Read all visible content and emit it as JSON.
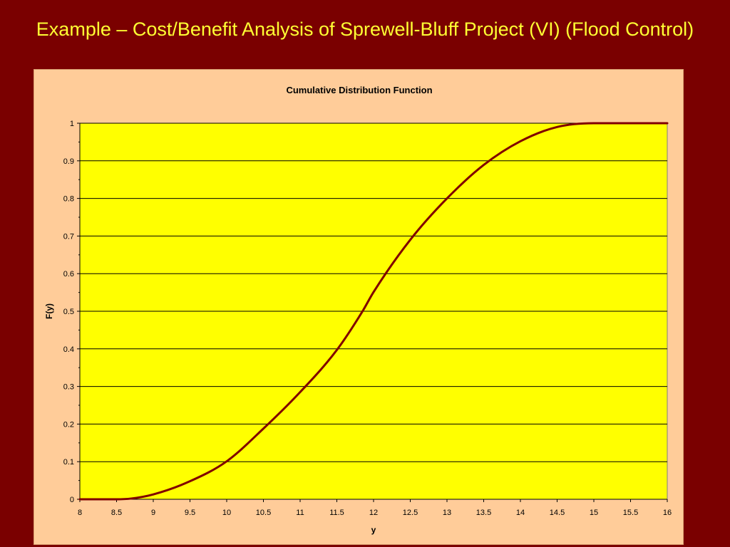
{
  "slide": {
    "title": "Example – Cost/Benefit Analysis of Sprewell-Bluff Project (VI) (Flood Control)"
  },
  "colors": {
    "background": "#7a0000",
    "title_text": "#ffff33",
    "chart_area": "#ffcc99",
    "plot_area": "#ffff00",
    "curve": "#800000",
    "gridline": "#000000"
  },
  "chart_data": {
    "type": "line",
    "title": "Cumulative Distribution Function",
    "xlabel": "y",
    "ylabel": "F(y)",
    "xlim": [
      8,
      16
    ],
    "ylim": [
      0,
      1
    ],
    "x_ticks": [
      "8",
      "8.5",
      "9",
      "9.5",
      "10",
      "10.5",
      "11",
      "11.5",
      "12",
      "12.5",
      "13",
      "13.5",
      "14",
      "14.5",
      "15",
      "15.5",
      "16"
    ],
    "y_ticks": [
      "0",
      "0.1",
      "0.2",
      "0.3",
      "0.4",
      "0.5",
      "0.6",
      "0.7",
      "0.8",
      "0.9",
      "1"
    ],
    "grid": "horizontal major gridlines",
    "legend": "none",
    "series": [
      {
        "x": [
          8,
          8.5,
          8.7,
          9,
          9.5,
          10,
          10.5,
          11,
          11.5,
          11.85,
          12,
          12.5,
          13,
          13.5,
          14,
          14.5,
          15,
          15.5,
          16
        ],
        "y": [
          0,
          0,
          0.002,
          0.013,
          0.048,
          0.101,
          0.188,
          0.285,
          0.397,
          0.5,
          0.551,
          0.69,
          0.8,
          0.889,
          0.952,
          0.99,
          1,
          1,
          1
        ]
      }
    ]
  }
}
